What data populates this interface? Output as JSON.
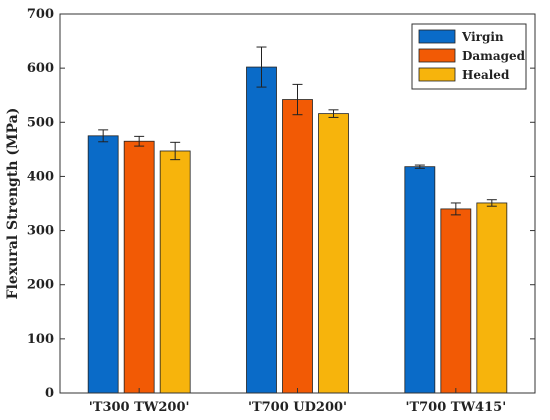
{
  "chart_data": {
    "type": "bar",
    "title": "",
    "xlabel": "",
    "ylabel": "Flexural Strength (MPa)",
    "ylim": [
      0,
      700
    ],
    "yticks": [
      0,
      100,
      200,
      300,
      400,
      500,
      600,
      700
    ],
    "grid": false,
    "legend_position": "top-right",
    "categories": [
      "'T300 TW200'",
      "'T700 UD200'",
      "'T700 TW415'"
    ],
    "series": [
      {
        "name": "Virgin",
        "color": "#0a6bc8",
        "values": [
          475,
          602,
          418
        ],
        "errors": [
          11,
          37,
          3
        ]
      },
      {
        "name": "Damaged",
        "color": "#f25a05",
        "values": [
          465,
          542,
          340
        ],
        "errors": [
          9,
          28,
          11
        ]
      },
      {
        "name": "Healed",
        "color": "#f7b40c",
        "values": [
          447,
          516,
          351
        ],
        "errors": [
          16,
          7,
          6
        ]
      }
    ]
  }
}
